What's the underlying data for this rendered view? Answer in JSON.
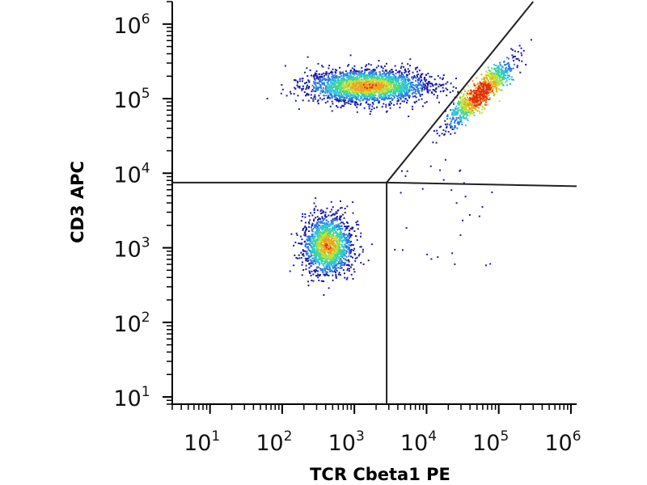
{
  "chart_data": {
    "type": "scatter",
    "title": "",
    "xlabel": "TCR Cbeta1 PE",
    "ylabel": "CD3 APC",
    "x_scale": "log",
    "y_scale": "log",
    "xlim": [
      3,
      1200000
    ],
    "ylim": [
      8,
      2000000
    ],
    "x_ticks": [
      {
        "base": "10",
        "exp": "1",
        "value": 10
      },
      {
        "base": "10",
        "exp": "2",
        "value": 100
      },
      {
        "base": "10",
        "exp": "3",
        "value": 1000
      },
      {
        "base": "10",
        "exp": "4",
        "value": 10000
      },
      {
        "base": "10",
        "exp": "5",
        "value": 100000
      },
      {
        "base": "10",
        "exp": "6",
        "value": 1000000
      }
    ],
    "y_ticks": [
      {
        "base": "10",
        "exp": "1",
        "value": 10
      },
      {
        "base": "10",
        "exp": "2",
        "value": 100
      },
      {
        "base": "10",
        "exp": "3",
        "value": 1000
      },
      {
        "base": "10",
        "exp": "4",
        "value": 10000
      },
      {
        "base": "10",
        "exp": "5",
        "value": 100000
      },
      {
        "base": "10",
        "exp": "6",
        "value": 1000000
      }
    ],
    "grid": false,
    "legend": "none",
    "density_colormap": [
      "#1a1aa6",
      "#2a7ae0",
      "#2ec4d8",
      "#44d88a",
      "#c8e030",
      "#f0a020",
      "#e03010"
    ],
    "populations": [
      {
        "x_center": 1500,
        "y_center": 150000,
        "x_spread_decades": 0.42,
        "y_spread_decades": 0.11,
        "events": 2400,
        "shape": "horizontal band"
      },
      {
        "x_center": 55000,
        "y_center": 120000,
        "x_spread_decades": 0.14,
        "y_spread_decades": 0.17,
        "events": 1000,
        "shape": "diagonal elongated"
      },
      {
        "x_center": 420,
        "y_center": 1100,
        "x_spread_decades": 0.17,
        "y_spread_decades": 0.2,
        "events": 1600,
        "shape": "round"
      }
    ],
    "gates": {
      "horizontal": {
        "y": 7500,
        "x_from": 3,
        "x_to": 1200000,
        "y_end": 6700
      },
      "vertical": {
        "x": 2800,
        "y_from": 8,
        "y_to": 7500
      },
      "diagonal": {
        "x_from": 2800,
        "y_from": 7500,
        "x_to": 300000,
        "y_to": 2000000
      }
    },
    "axis_color": "#000000",
    "gate_color": "#222222"
  }
}
